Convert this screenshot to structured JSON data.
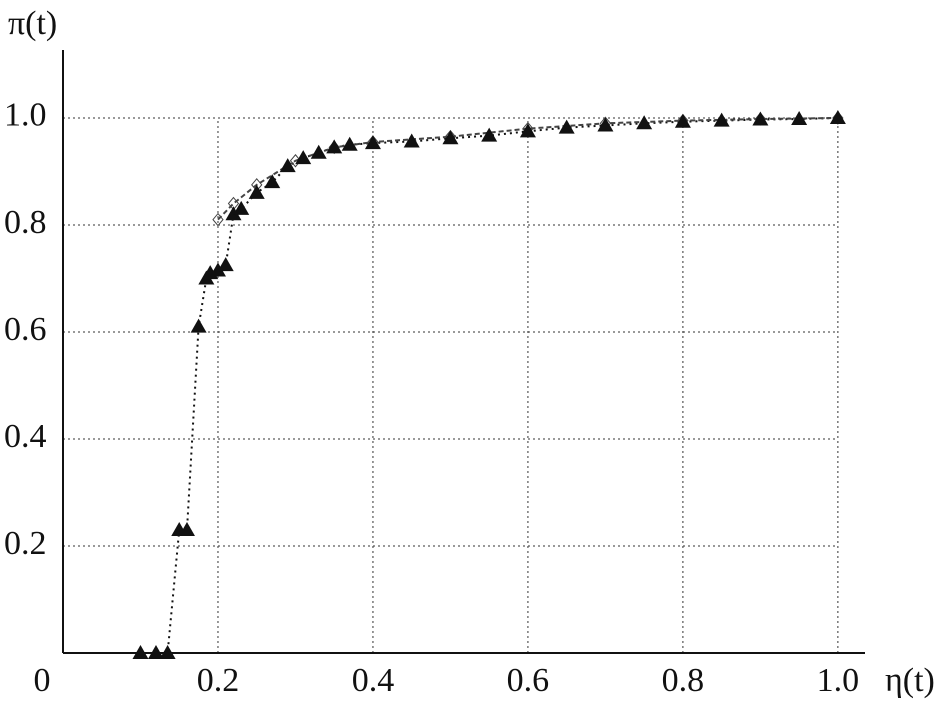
{
  "chart_data": {
    "type": "line",
    "y_label": "π(t)",
    "x_label": "η(t)",
    "origin_label": "0",
    "xlim": [
      0,
      1.035
    ],
    "ylim": [
      0,
      1.127
    ],
    "xticks": [
      0.2,
      0.4,
      0.6,
      0.8,
      {
        "value": 1,
        "label": "1.0"
      }
    ],
    "yticks": [
      0.2,
      0.4,
      0.6,
      0.8,
      {
        "value": 1,
        "label": "1.0"
      }
    ],
    "grid": true,
    "series": [
      {
        "color": "#111111",
        "marker": "triangle",
        "line": "dotted",
        "x": [
          0.1,
          0.12,
          0.135,
          0.15,
          0.16,
          0.175,
          0.185,
          0.19,
          0.2,
          0.21,
          0.22,
          0.23,
          0.25,
          0.27,
          0.29,
          0.31,
          0.33,
          0.35,
          0.37,
          0.4,
          0.45,
          0.5,
          0.55,
          0.6,
          0.65,
          0.7,
          0.75,
          0.8,
          0.85,
          0.9,
          0.95,
          1.0
        ],
        "values": [
          0,
          0,
          0,
          0.23,
          0.23,
          0.61,
          0.7,
          0.71,
          0.715,
          0.725,
          0.82,
          0.83,
          0.86,
          0.88,
          0.91,
          0.925,
          0.935,
          0.945,
          0.95,
          0.953,
          0.956,
          0.962,
          0.967,
          0.975,
          0.982,
          0.986,
          0.99,
          0.993,
          0.995,
          0.997,
          0.998,
          1.0
        ]
      },
      {
        "color": "#444444",
        "marker": "diamond",
        "line": "dashed",
        "x": [
          0.2,
          0.22,
          0.25,
          0.3,
          0.35,
          0.4,
          0.5,
          0.6,
          0.7,
          0.8,
          0.9,
          1.0
        ],
        "values": [
          0.81,
          0.84,
          0.875,
          0.92,
          0.945,
          0.955,
          0.965,
          0.98,
          0.99,
          0.995,
          0.998,
          1.0
        ]
      }
    ]
  }
}
